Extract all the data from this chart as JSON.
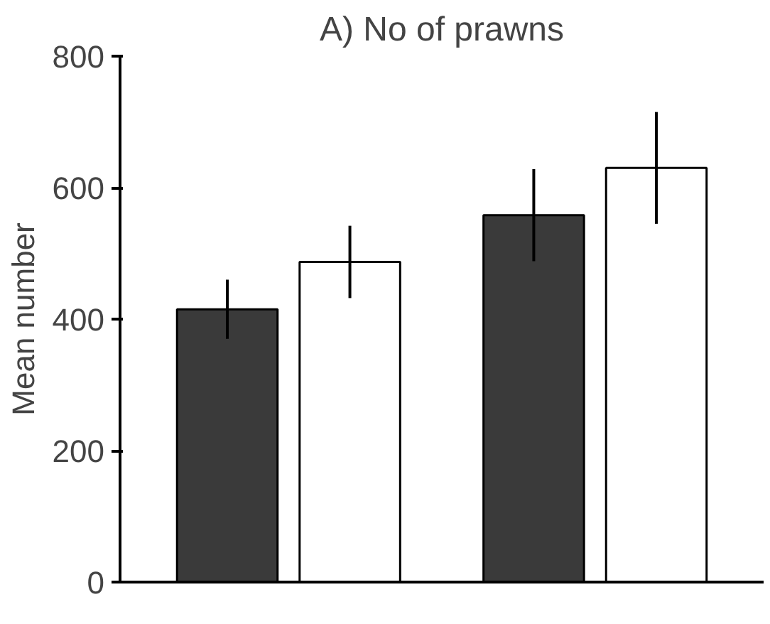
{
  "chart_data": {
    "type": "bar",
    "title": "A) No of prawns",
    "ylabel": "Mean number",
    "categories": [
      null,
      null
    ],
    "series": [
      {
        "color": "#3a3a3a",
        "values": [
          415,
          558
        ],
        "errors": [
          45,
          70
        ]
      },
      {
        "color": "#ffffff",
        "values": [
          487,
          630
        ],
        "errors": [
          55,
          85
        ]
      }
    ],
    "ylim": [
      0,
      800
    ],
    "yticks": [
      0,
      200,
      400,
      600,
      800
    ],
    "grid": false
  }
}
